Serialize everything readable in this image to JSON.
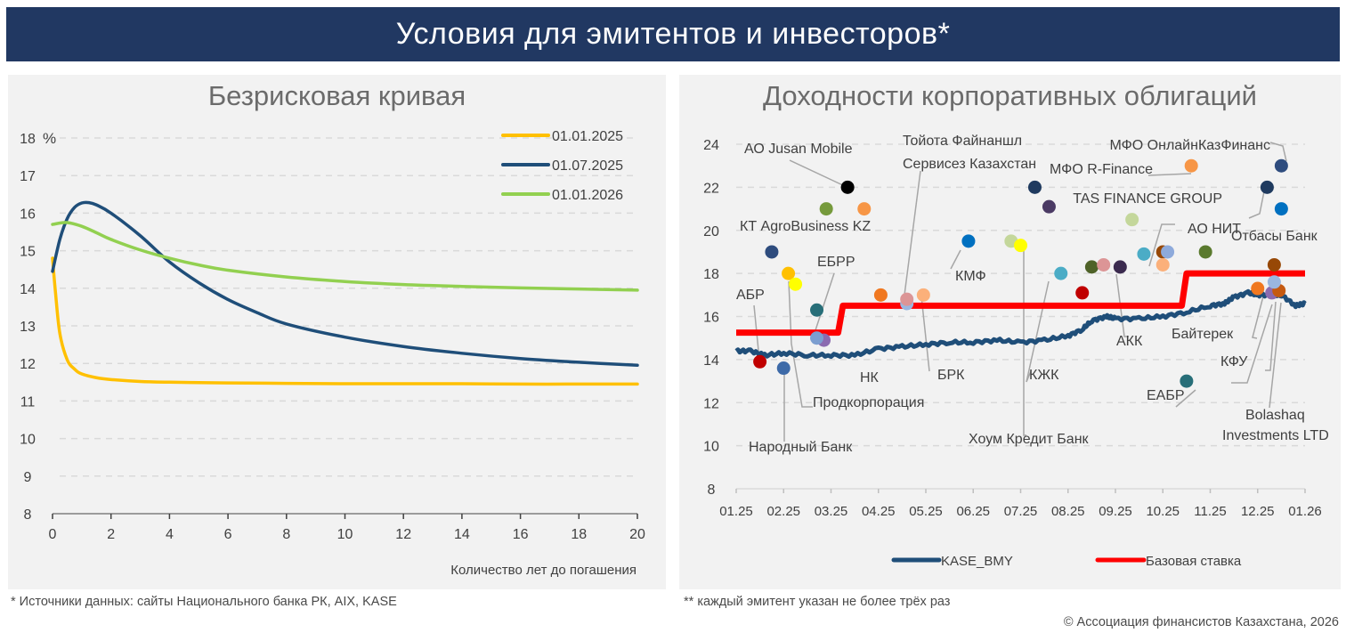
{
  "header": {
    "title": "Условия для эмитентов и инвесторов*"
  },
  "footnotes": {
    "left": "* Источники данных: сайты Национального банка РК, AIX, KASE",
    "right": "** каждый эмитент указан не более трёх раз",
    "copyright": "© Ассоциация финансистов Казахстана, 2026"
  },
  "chart_data": [
    {
      "type": "line",
      "title": "Безрисковая кривая",
      "xlabel": "Количество лет до погашения",
      "ylabel": "%",
      "xlim": [
        0,
        20
      ],
      "ylim": [
        8,
        18
      ],
      "xticks": [
        "0",
        "2",
        "4",
        "6",
        "8",
        "10",
        "12",
        "14",
        "16",
        "18",
        "20"
      ],
      "yticks": [
        "8",
        "9",
        "10",
        "11",
        "12",
        "13",
        "14",
        "15",
        "16",
        "17",
        "18"
      ],
      "grid": true,
      "legend_position": "top-right",
      "series": [
        {
          "name": "01.01.2025",
          "color": "#ffc000",
          "x": [
            0,
            0.1,
            0.25,
            0.5,
            0.75,
            1,
            1.5,
            2,
            3,
            4,
            5,
            6,
            8,
            10,
            12,
            14,
            16,
            18,
            20
          ],
          "y": [
            14.8,
            13.9,
            12.8,
            12.1,
            11.85,
            11.72,
            11.62,
            11.57,
            11.52,
            11.5,
            11.49,
            11.48,
            11.47,
            11.46,
            11.46,
            11.46,
            11.45,
            11.45,
            11.45
          ]
        },
        {
          "name": "01.07.2025",
          "color": "#1f4e79",
          "x": [
            0,
            0.25,
            0.5,
            0.75,
            1,
            1.25,
            1.5,
            2,
            3,
            4,
            5,
            6,
            7,
            8,
            10,
            12,
            14,
            16,
            18,
            20
          ],
          "y": [
            14.45,
            15.3,
            15.85,
            16.15,
            16.27,
            16.28,
            16.22,
            16.0,
            15.4,
            14.7,
            14.15,
            13.7,
            13.35,
            13.05,
            12.7,
            12.45,
            12.27,
            12.13,
            12.03,
            11.95
          ]
        },
        {
          "name": "01.01.2026",
          "color": "#92d050",
          "x": [
            0,
            0.5,
            1,
            1.5,
            2,
            3,
            4,
            5,
            6,
            8,
            10,
            12,
            14,
            16,
            18,
            20
          ],
          "y": [
            15.7,
            15.75,
            15.65,
            15.48,
            15.3,
            15.02,
            14.8,
            14.62,
            14.48,
            14.3,
            14.18,
            14.1,
            14.05,
            14.01,
            13.98,
            13.95
          ]
        }
      ]
    },
    {
      "type": "scatter",
      "title": "Доходности корпоративных облигаций",
      "xlabel": "",
      "ylabel": "",
      "xlim": [
        0,
        12
      ],
      "ylim": [
        8,
        24
      ],
      "xticks": [
        "01.25",
        "02.25",
        "03.25",
        "04.25",
        "05.25",
        "06.25",
        "07.25",
        "08.25",
        "09.25",
        "10.25",
        "11.25",
        "12.25",
        "01.26"
      ],
      "yticks": [
        "8",
        "10",
        "12",
        "14",
        "16",
        "18",
        "20",
        "22",
        "24"
      ],
      "x_units": "months since 01.25",
      "grid": true,
      "legend_position": "bottom",
      "lines": [
        {
          "name": "KASE_BMY",
          "color": "#1f4e79",
          "x": [
            0,
            0.3,
            0.6,
            1,
            1.5,
            2,
            2.5,
            3,
            3.5,
            4,
            4.5,
            5,
            5.5,
            6,
            6.5,
            7,
            7.3,
            7.5,
            7.8,
            8,
            8.5,
            9,
            9.5,
            10,
            10.3,
            10.5,
            10.8,
            11,
            11.3,
            11.5,
            11.8,
            12
          ],
          "y": [
            14.4,
            14.4,
            14.2,
            14.3,
            14.2,
            14.2,
            14.2,
            14.5,
            14.6,
            14.7,
            14.8,
            14.8,
            14.9,
            14.8,
            14.9,
            15.1,
            15.4,
            15.8,
            16.0,
            15.9,
            15.9,
            16.0,
            16.2,
            16.5,
            16.6,
            16.9,
            17.1,
            17.0,
            17.0,
            17.0,
            16.5,
            16.6
          ]
        },
        {
          "name": "Базовая ставка",
          "color": "#ff0000",
          "step": true,
          "x": [
            0,
            2.15,
            2.25,
            9.4,
            9.5,
            12
          ],
          "y": [
            15.25,
            15.25,
            16.5,
            16.5,
            18.0,
            18.0
          ]
        }
      ],
      "points": [
        {
          "x": 0.5,
          "y": 13.9,
          "color": "#c00000"
        },
        {
          "x": 0.75,
          "y": 19.0,
          "color": "#2e4c7e"
        },
        {
          "x": 1.0,
          "y": 13.6,
          "color": "#3d6aa8"
        },
        {
          "x": 1.1,
          "y": 18.0,
          "color": "#ffc000"
        },
        {
          "x": 1.25,
          "y": 17.5,
          "color": "#ffff00"
        },
        {
          "x": 1.7,
          "y": 16.3,
          "color": "#276e78"
        },
        {
          "x": 1.85,
          "y": 14.9,
          "color": "#8b6bb0"
        },
        {
          "x": 1.7,
          "y": 15.0,
          "color": "#7c9ed0"
        },
        {
          "x": 1.9,
          "y": 21.0,
          "color": "#769a3c"
        },
        {
          "x": 2.35,
          "y": 22.0,
          "color": "#000000"
        },
        {
          "x": 2.7,
          "y": 21.0,
          "color": "#f79646"
        },
        {
          "x": 3.05,
          "y": 17.0,
          "color": "#f07820"
        },
        {
          "x": 3.6,
          "y": 16.6,
          "color": "#9ab7e0"
        },
        {
          "x": 3.6,
          "y": 16.8,
          "color": "#dc9596"
        },
        {
          "x": 3.95,
          "y": 17.0,
          "color": "#fbb07a"
        },
        {
          "x": 4.9,
          "y": 19.5,
          "color": "#0070c0"
        },
        {
          "x": 5.8,
          "y": 19.5,
          "color": "#c4d79b"
        },
        {
          "x": 6.0,
          "y": 19.3,
          "color": "#ffff00"
        },
        {
          "x": 6.3,
          "y": 22.0,
          "color": "#1f3a5f"
        },
        {
          "x": 6.6,
          "y": 21.1,
          "color": "#4b3a64"
        },
        {
          "x": 6.85,
          "y": 18.0,
          "color": "#4bacc6"
        },
        {
          "x": 7.3,
          "y": 17.1,
          "color": "#c00000"
        },
        {
          "x": 7.5,
          "y": 18.3,
          "color": "#4f6228"
        },
        {
          "x": 7.75,
          "y": 18.4,
          "color": "#dc9596"
        },
        {
          "x": 8.1,
          "y": 18.3,
          "color": "#3b2a4e"
        },
        {
          "x": 8.35,
          "y": 20.5,
          "color": "#c4d79b"
        },
        {
          "x": 8.6,
          "y": 18.9,
          "color": "#4bacc6"
        },
        {
          "x": 9.0,
          "y": 19.0,
          "color": "#974806"
        },
        {
          "x": 9.1,
          "y": 19.0,
          "color": "#8eaadb"
        },
        {
          "x": 9.0,
          "y": 18.4,
          "color": "#fbb07a"
        },
        {
          "x": 9.9,
          "y": 19.0,
          "color": "#5a7a2e"
        },
        {
          "x": 9.6,
          "y": 23.0,
          "color": "#f79646"
        },
        {
          "x": 9.5,
          "y": 13.0,
          "color": "#276e78"
        },
        {
          "x": 11.2,
          "y": 22.0,
          "color": "#1f3a5f"
        },
        {
          "x": 11.5,
          "y": 23.0,
          "color": "#2e4c7e"
        },
        {
          "x": 11.5,
          "y": 21.0,
          "color": "#0070c0"
        },
        {
          "x": 11.0,
          "y": 17.3,
          "color": "#f07820"
        },
        {
          "x": 11.35,
          "y": 18.4,
          "color": "#974806"
        },
        {
          "x": 11.3,
          "y": 17.1,
          "color": "#8b6bb0"
        },
        {
          "x": 11.45,
          "y": 17.2,
          "color": "#c55a11"
        },
        {
          "x": 11.35,
          "y": 17.6,
          "color": "#9ab7e0"
        }
      ],
      "annotations": [
        {
          "text": "АО Jusan Mobile"
        },
        {
          "text": "КТ AgroBusiness KZ"
        },
        {
          "text": "ЕБРР"
        },
        {
          "text": "АБР"
        },
        {
          "text": "НК"
        },
        {
          "text": "Продкорпорация"
        },
        {
          "text": "Народный Банк"
        },
        {
          "text": "Тойота Файнаншл"
        },
        {
          "text": "Сервисез Казахстан"
        },
        {
          "text": "КМФ"
        },
        {
          "text": "БРК"
        },
        {
          "text": "КЖК"
        },
        {
          "text": "Хоум Кредит Банк"
        },
        {
          "text": "АКК"
        },
        {
          "text": "АО НИТ"
        },
        {
          "text": "МФО R-Finance"
        },
        {
          "text": "МФО ОнлайнКазФинанс"
        },
        {
          "text": "TAS FINANCE GROUP"
        },
        {
          "text": "Отбасы Банк"
        },
        {
          "text": "Байтерек"
        },
        {
          "text": "КФУ"
        },
        {
          "text": "ЕАБР"
        },
        {
          "text": "Bolashaq"
        },
        {
          "text": "Investments LTD"
        }
      ]
    }
  ]
}
